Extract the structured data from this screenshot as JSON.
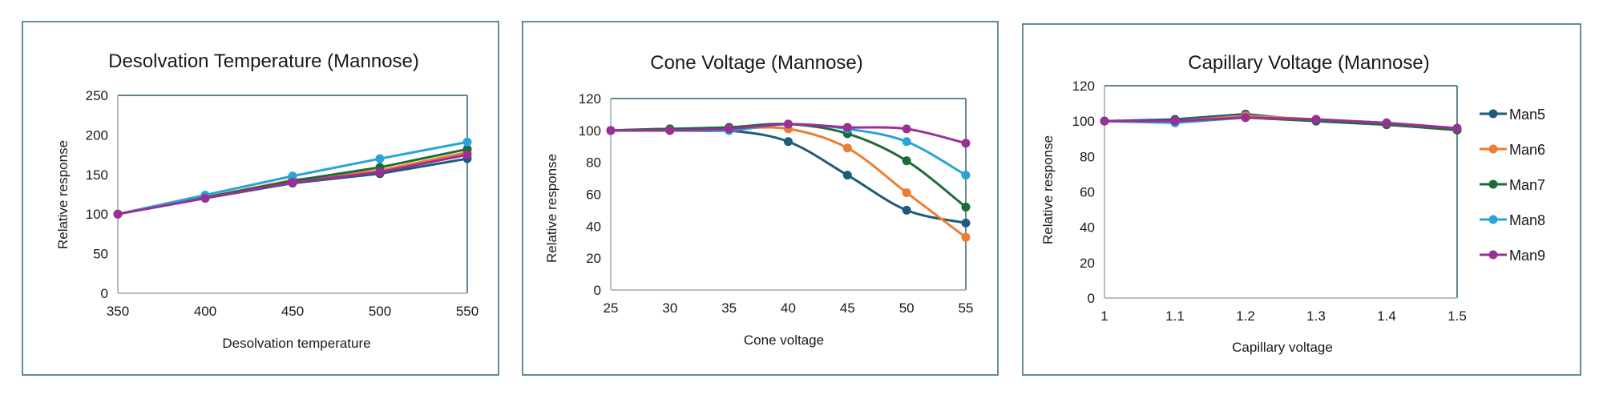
{
  "chart_data": [
    {
      "type": "line",
      "title": "Desolvation Temperature (Mannose)",
      "xlabel": "Desolvation temperature",
      "ylabel": "Relative response",
      "x": [
        350,
        400,
        450,
        500,
        550
      ],
      "xlim": [
        350,
        550
      ],
      "ylim": [
        0,
        250
      ],
      "yticks": [
        0,
        50,
        100,
        150,
        200,
        250
      ],
      "smooth": false,
      "grid": false,
      "series": [
        {
          "name": "Man5",
          "color": "#1f5b7a",
          "values": [
            100,
            120,
            139,
            151,
            170
          ]
        },
        {
          "name": "Man6",
          "color": "#ed7d31",
          "values": [
            100,
            121,
            143,
            155,
            178
          ]
        },
        {
          "name": "Man7",
          "color": "#1e6b3a",
          "values": [
            100,
            121,
            142,
            159,
            182
          ]
        },
        {
          "name": "Man8",
          "color": "#2aa3d6",
          "values": [
            100,
            124,
            148,
            170,
            191
          ]
        },
        {
          "name": "Man9",
          "color": "#9b2f96",
          "values": [
            100,
            120,
            140,
            153,
            175
          ]
        }
      ]
    },
    {
      "type": "line",
      "title": "Cone Voltage (Mannose)",
      "xlabel": "Cone voltage",
      "ylabel": "Relative response",
      "x": [
        25,
        30,
        35,
        40,
        45,
        50,
        55
      ],
      "xlim": [
        25,
        55
      ],
      "ylim": [
        0,
        120
      ],
      "yticks": [
        0,
        20,
        40,
        60,
        80,
        100,
        120
      ],
      "smooth": true,
      "grid": false,
      "series": [
        {
          "name": "Man5",
          "color": "#1f5b7a",
          "values": [
            100,
            101,
            100,
            93,
            72,
            50,
            42
          ]
        },
        {
          "name": "Man6",
          "color": "#ed7d31",
          "values": [
            100,
            100,
            101,
            101,
            89,
            61,
            33
          ]
        },
        {
          "name": "Man7",
          "color": "#1e6b3a",
          "values": [
            100,
            101,
            102,
            104,
            98,
            81,
            52
          ]
        },
        {
          "name": "Man8",
          "color": "#2aa3d6",
          "values": [
            100,
            100,
            100,
            104,
            101,
            93,
            72
          ]
        },
        {
          "name": "Man9",
          "color": "#9b2f96",
          "values": [
            100,
            100,
            101,
            104,
            102,
            101,
            92
          ]
        }
      ]
    },
    {
      "type": "line",
      "title": "Capillary Voltage (Mannose)",
      "xlabel": "Capillary voltage",
      "ylabel": "Relative response",
      "x": [
        1,
        1.1,
        1.2,
        1.3,
        1.4,
        1.5
      ],
      "xlim": [
        1,
        1.5
      ],
      "ylim": [
        0,
        120
      ],
      "yticks": [
        0,
        20,
        40,
        60,
        80,
        100,
        120
      ],
      "smooth": false,
      "grid": false,
      "legend": "right",
      "series": [
        {
          "name": "Man5",
          "color": "#1f5b7a",
          "values": [
            100,
            101,
            104,
            100,
            98,
            95
          ]
        },
        {
          "name": "Man6",
          "color": "#ed7d31",
          "values": [
            100,
            100,
            103,
            101,
            98,
            95
          ]
        },
        {
          "name": "Man7",
          "color": "#1e6b3a",
          "values": [
            100,
            100,
            102,
            100,
            98,
            95
          ]
        },
        {
          "name": "Man8",
          "color": "#2aa3d6",
          "values": [
            100,
            99,
            102,
            101,
            99,
            96
          ]
        },
        {
          "name": "Man9",
          "color": "#9b2f96",
          "values": [
            100,
            100,
            102,
            101,
            99,
            96
          ]
        }
      ]
    }
  ]
}
